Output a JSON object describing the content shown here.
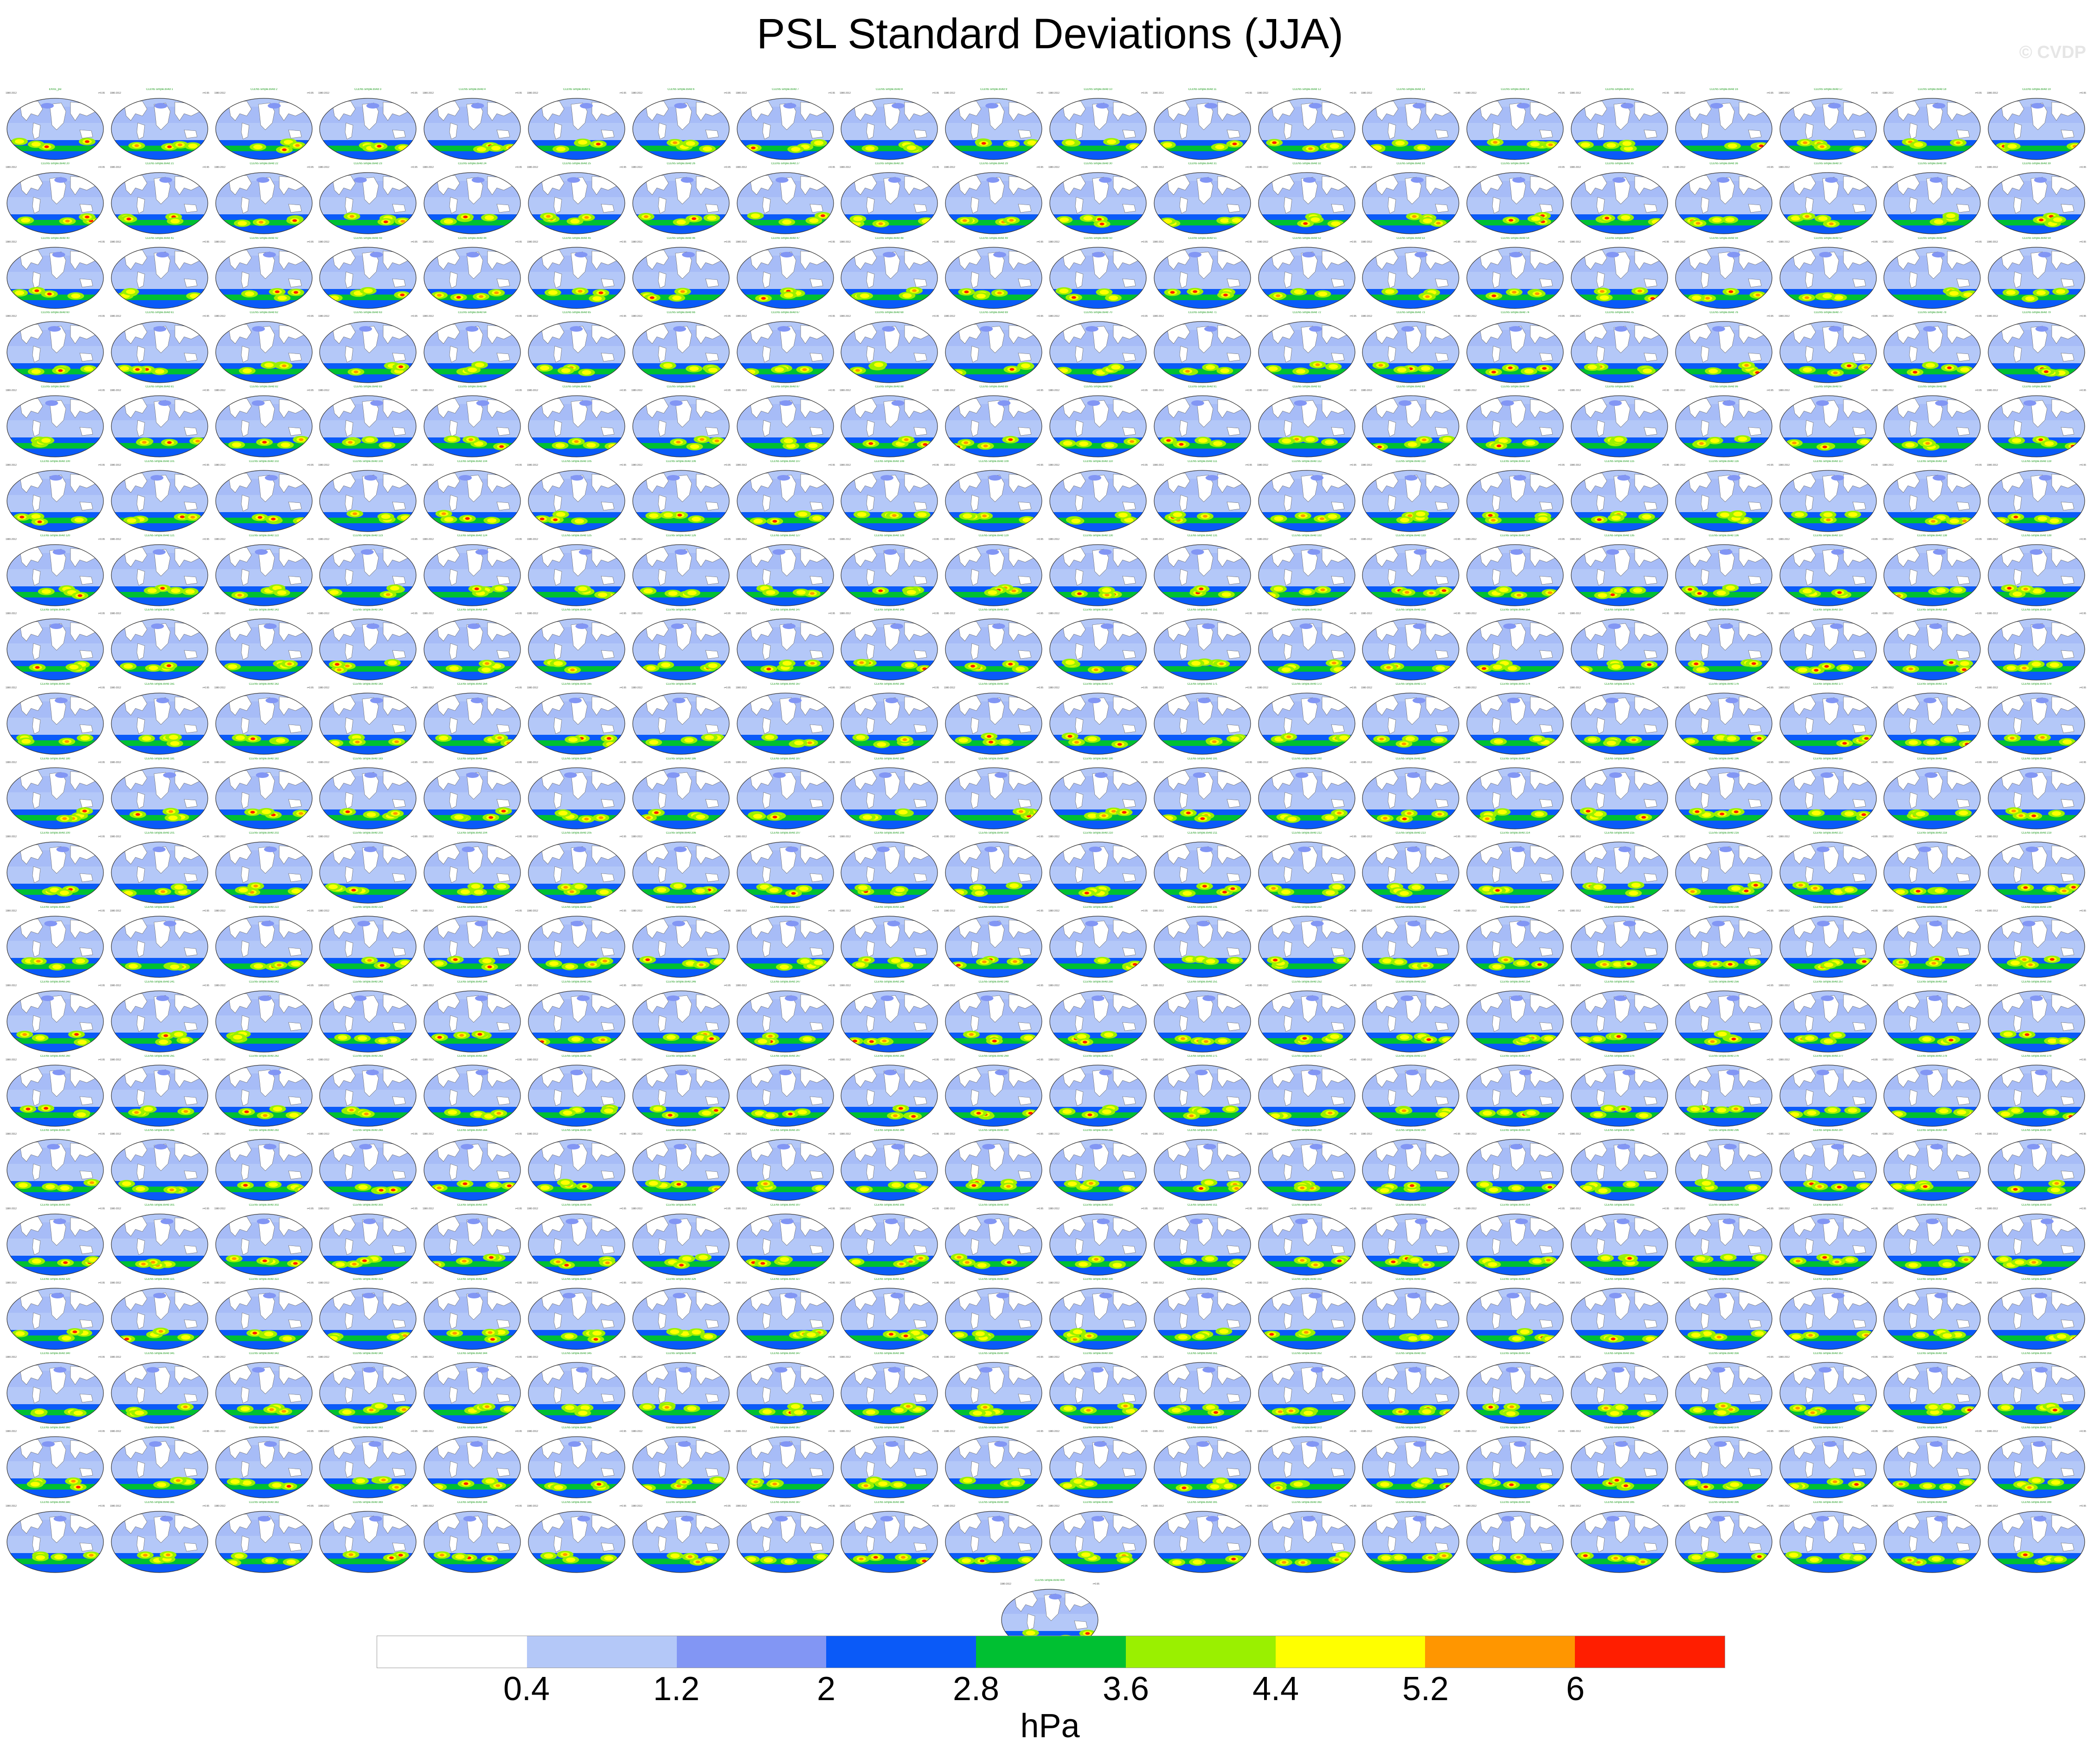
{
  "title": "PSL Standard Deviations (JJA)",
  "watermark": "© CVDP",
  "colorbar": {
    "colors": [
      "#ffffff",
      "#b4c8f8",
      "#8296f4",
      "#0a5af8",
      "#00c032",
      "#9af000",
      "#ffff00",
      "#ff9600",
      "#ff1e00"
    ],
    "labels": [
      "0.4",
      "1.2",
      "2",
      "2.8",
      "3.6",
      "4.4",
      "5.2",
      "6"
    ],
    "units": "hPa"
  },
  "panels": {
    "first_title": "ERA5_psl",
    "member_title_prefix": "CLEN5 simple.8x4d",
    "left_label": "1980-2012",
    "right_label": "r=0.95",
    "grid_rows": 20,
    "grid_cols": 20,
    "extra_last_row": 1,
    "ocean_color": "#b4c8f8",
    "land_color": "#ffffff",
    "outline_color": "#333333"
  }
}
